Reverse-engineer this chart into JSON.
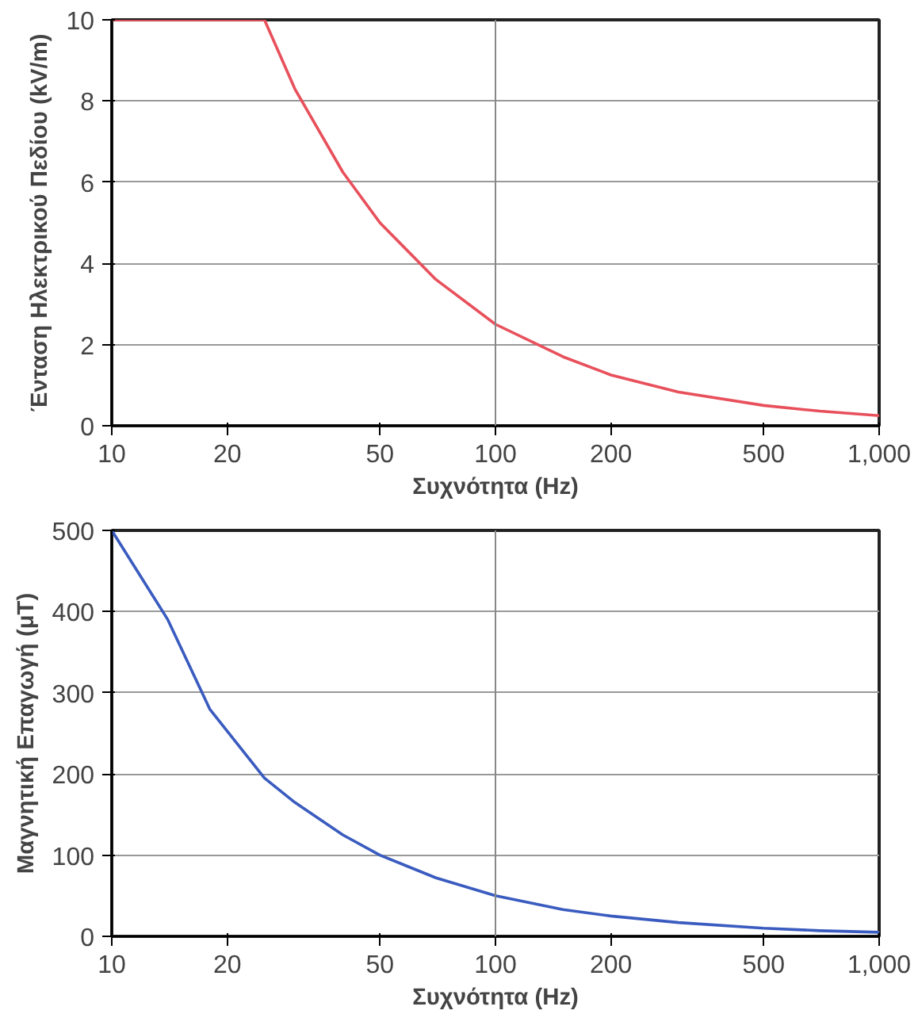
{
  "chart_data": [
    {
      "type": "line",
      "xlabel": "Συχνότητα (Hz)",
      "ylabel": "Ένταση Ηλεκτρικού Πεδίου (kV/m)",
      "log": "x",
      "grid": "y",
      "x": [
        10,
        25,
        30,
        40,
        50,
        70,
        100,
        150,
        200,
        300,
        500,
        700,
        1000
      ],
      "series": [
        {
          "color": "#e8505b",
          "values": [
            10,
            10,
            8.3,
            6.25,
            5,
            3.6,
            2.5,
            1.7,
            1.25,
            0.83,
            0.5,
            0.36,
            0.25
          ]
        }
      ],
      "xlim": [
        10,
        1000
      ],
      "xticks": [
        10,
        20,
        50,
        100,
        200,
        500,
        {
          "value": 1000,
          "label": "1,000"
        }
      ],
      "ylim": [
        0,
        10
      ],
      "yticks": [
        0,
        2,
        4,
        6,
        8,
        10
      ],
      "ref_lines": [
        {
          "axis": "x",
          "value": 100,
          "color": "#888888"
        }
      ]
    },
    {
      "type": "line",
      "xlabel": "Συχνότητα (Hz)",
      "ylabel": "Μαγνητική Επαγωγή (μT)",
      "log": "x",
      "grid": "y",
      "x": [
        10,
        14,
        18,
        25,
        30,
        40,
        50,
        70,
        100,
        150,
        200,
        300,
        500,
        700,
        1000
      ],
      "series": [
        {
          "color": "#3a5bbf",
          "values": [
            500,
            390,
            280,
            195,
            165,
            125,
            100,
            72,
            50,
            33,
            25,
            17,
            10,
            7,
            5
          ]
        }
      ],
      "xlim": [
        10,
        1000
      ],
      "xticks": [
        10,
        20,
        50,
        100,
        200,
        500,
        {
          "value": 1000,
          "label": "1,000"
        }
      ],
      "ylim": [
        0,
        500
      ],
      "yticks": [
        0,
        100,
        200,
        300,
        400,
        500
      ],
      "ref_lines": [
        {
          "axis": "x",
          "value": 100,
          "color": "#888888"
        }
      ]
    }
  ]
}
